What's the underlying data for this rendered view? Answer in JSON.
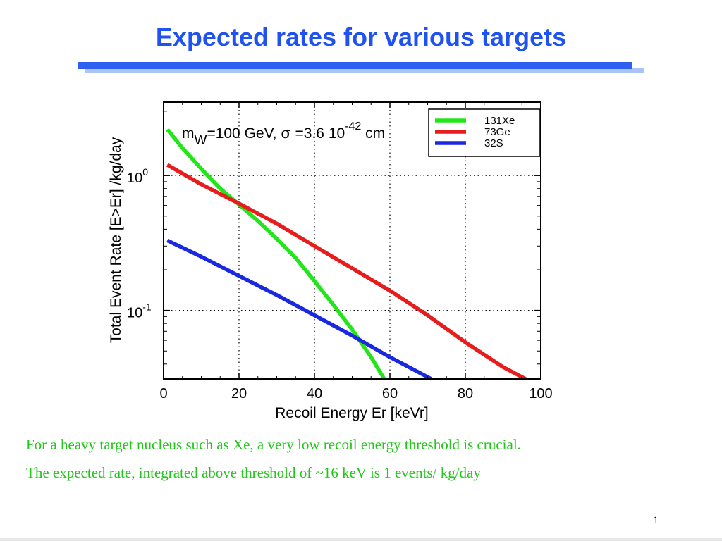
{
  "slide": {
    "title": "Expected rates for various targets",
    "caption_lines": [
      "For a heavy target nucleus such as Xe, a very low recoil energy threshold is crucial.",
      "The expected rate, integrated above threshold of ~16  keV is 1 events/ kg/day"
    ],
    "page_number": "1"
  },
  "colors": {
    "title": "#1f52f0",
    "underline": "#2d5ff0",
    "caption": "#22c51a",
    "xe": "#22e61a",
    "ge": "#e81c1c",
    "s": "#1a28e0"
  },
  "chart_data": {
    "type": "line",
    "xlabel": "Recoil Energy Er [keVr]",
    "ylabel": "Total Event Rate [E>Er] /kg/day",
    "xlim": [
      0,
      100
    ],
    "ylim": [
      0.031,
      3.5
    ],
    "yscale": "log",
    "grid": true,
    "legend": "top-right",
    "x_ticks": [
      "0",
      "20",
      "40",
      "60",
      "80",
      "100"
    ],
    "y_ticks": [
      {
        "value": 1,
        "base": "10",
        "exp": "0"
      },
      {
        "value": 0.1,
        "base": "10",
        "exp": "-1"
      }
    ],
    "annotation": {
      "m": "m",
      "m_sub": "W",
      "mid": "=100 GeV, ",
      "sigma": "σ",
      "eq": " =3.6 10",
      "exp": "-42",
      "unit": " cm"
    },
    "series": [
      {
        "name": "131Xe",
        "x": [
          1,
          5,
          10,
          15,
          20,
          25,
          30,
          35,
          40,
          45,
          50,
          55,
          58.5
        ],
        "y": [
          2.2,
          1.6,
          1.12,
          0.8,
          0.61,
          0.46,
          0.34,
          0.245,
          0.165,
          0.11,
          0.072,
          0.045,
          0.031
        ]
      },
      {
        "name": "73Ge",
        "x": [
          1,
          10,
          20,
          30,
          40,
          50,
          60,
          70,
          80,
          90,
          96
        ],
        "y": [
          1.2,
          0.86,
          0.62,
          0.44,
          0.3,
          0.205,
          0.14,
          0.092,
          0.058,
          0.038,
          0.031
        ]
      },
      {
        "name": "32S",
        "x": [
          1,
          10,
          20,
          30,
          40,
          50,
          60,
          71
        ],
        "y": [
          0.33,
          0.25,
          0.18,
          0.13,
          0.092,
          0.065,
          0.045,
          0.031
        ]
      }
    ]
  }
}
